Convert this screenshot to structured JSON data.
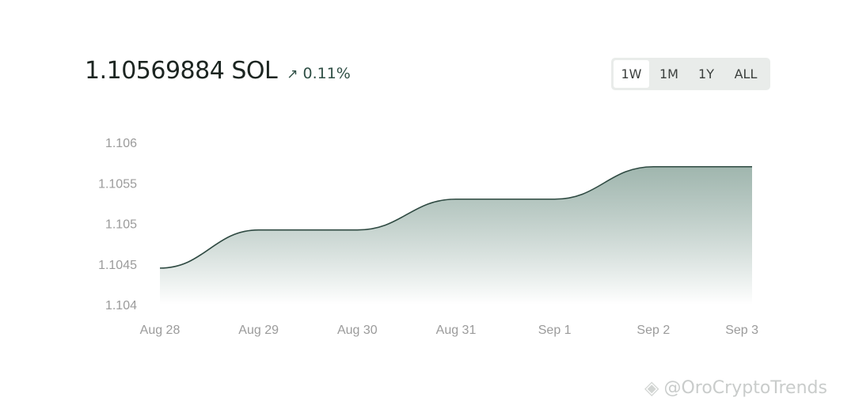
{
  "balance": {
    "amount": "1.10569884 SOL",
    "change": "0.11%",
    "change_icon": "arrow-up-right-icon"
  },
  "range_selector": {
    "options": [
      "1W",
      "1M",
      "1Y",
      "ALL"
    ],
    "selected": "1W"
  },
  "colors": {
    "line": "#2f4a42",
    "fill_top": "#8fa9a0",
    "axis_text": "#9b9b9b",
    "accent": "#2f4f45"
  },
  "chart_data": {
    "type": "area",
    "x": [
      "Aug 28",
      "Aug 29",
      "Aug 30",
      "Aug 31",
      "Sep 1",
      "Sep 2",
      "Sep 3"
    ],
    "values": [
      1.10445,
      1.10492,
      1.10492,
      1.1053,
      1.1053,
      1.1057,
      1.1057
    ],
    "ylim": [
      1.104,
      1.106
    ],
    "y_ticks": [
      "1.104",
      "1.1045",
      "1.105",
      "1.1055",
      "1.106"
    ],
    "grid": false,
    "legend": "none"
  },
  "watermark": {
    "text": "@OroCryptoTrends",
    "logo": "binance-logo-icon"
  }
}
